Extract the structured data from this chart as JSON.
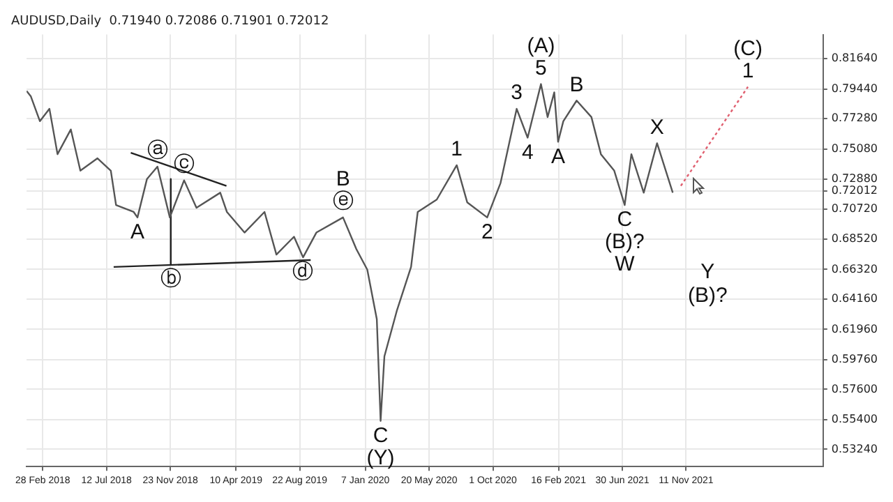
{
  "chart_data": {
    "type": "line",
    "title": "AUDUSD,Daily  0.71940 0.72086 0.71901 0.72012",
    "xlim": [
      "2018-01-25",
      "2022-08-26"
    ],
    "xticks": [
      {
        "value": "2018-02-28",
        "label": "28 Feb 2018"
      },
      {
        "value": "2018-07-12",
        "label": "12 Jul 2018"
      },
      {
        "value": "2018-11-23",
        "label": "23 Nov 2018"
      },
      {
        "value": "2019-04-10",
        "label": "10 Apr 2019"
      },
      {
        "value": "2019-08-22",
        "label": "22 Aug 2019"
      },
      {
        "value": "2020-01-07",
        "label": "7 Jan 2020"
      },
      {
        "value": "2020-05-20",
        "label": "20 May 2020"
      },
      {
        "value": "2020-10-01",
        "label": "1 Oct 2020"
      },
      {
        "value": "2021-02-16",
        "label": "16 Feb 2021"
      },
      {
        "value": "2021-06-30",
        "label": "30 Jun 2021"
      },
      {
        "value": "2021-11-11",
        "label": "11 Nov 2021"
      }
    ],
    "ylim": [
      0.5198,
      0.834
    ],
    "yticks": [
      {
        "value": 0.5324,
        "label": "0.53240"
      },
      {
        "value": 0.554,
        "label": "0.55400"
      },
      {
        "value": 0.576,
        "label": "0.57600"
      },
      {
        "value": 0.5976,
        "label": "0.59760"
      },
      {
        "value": 0.6196,
        "label": "0.61960"
      },
      {
        "value": 0.6416,
        "label": "0.64160"
      },
      {
        "value": 0.6632,
        "label": "0.66320"
      },
      {
        "value": 0.6852,
        "label": "0.68520"
      },
      {
        "value": 0.7072,
        "label": "0.70720"
      },
      {
        "value": 0.72012,
        "label": "0.72012"
      },
      {
        "value": 0.7288,
        "label": "0.72880"
      },
      {
        "value": 0.7508,
        "label": "0.75080"
      },
      {
        "value": 0.7728,
        "label": "0.77280"
      },
      {
        "value": 0.7944,
        "label": "0.79440"
      },
      {
        "value": 0.8164,
        "label": "0.81640"
      }
    ],
    "grid": true,
    "series": [
      {
        "color": "#555555",
        "x": [
          "2018-01-25",
          "2018-02-03",
          "2018-02-22",
          "2018-03-14",
          "2018-03-31",
          "2018-04-28",
          "2018-05-18",
          "2018-06-23",
          "2018-07-21",
          "2018-08-01",
          "2018-09-07",
          "2018-09-15",
          "2018-10-05",
          "2018-10-27",
          "2018-11-22",
          "2018-12-22",
          "2019-01-17",
          "2019-03-08",
          "2019-03-22",
          "2019-04-28",
          "2019-06-09",
          "2019-07-04",
          "2019-08-10",
          "2019-08-29",
          "2019-09-26",
          "2019-11-21",
          "2019-12-19",
          "2020-01-11",
          "2020-01-31",
          "2020-02-08",
          "2020-02-16",
          "2020-03-13",
          "2020-04-12",
          "2020-04-26",
          "2020-06-05",
          "2020-07-17",
          "2020-08-08",
          "2020-09-19",
          "2020-10-17",
          "2020-11-20",
          "2020-12-13",
          "2021-01-10",
          "2021-01-24",
          "2021-02-07",
          "2021-02-15",
          "2021-02-26",
          "2021-03-26",
          "2021-04-26",
          "2021-05-16",
          "2021-06-13",
          "2021-07-05",
          "2021-07-19",
          "2021-08-14",
          "2021-09-11",
          "2021-10-14"
        ],
        "values": [
          0.793,
          0.789,
          0.771,
          0.78,
          0.747,
          0.765,
          0.735,
          0.744,
          0.735,
          0.71,
          0.705,
          0.701,
          0.729,
          0.738,
          0.701,
          0.728,
          0.708,
          0.719,
          0.705,
          0.69,
          0.705,
          0.674,
          0.687,
          0.672,
          0.69,
          0.701,
          0.678,
          0.663,
          0.627,
          0.553,
          0.6,
          0.633,
          0.665,
          0.705,
          0.714,
          0.739,
          0.712,
          0.701,
          0.726,
          0.78,
          0.759,
          0.798,
          0.774,
          0.792,
          0.756,
          0.771,
          0.786,
          0.774,
          0.747,
          0.735,
          0.71,
          0.747,
          0.719,
          0.755,
          0.719
        ]
      },
      {
        "color": "#e06070",
        "line_style": "dotted",
        "x": [
          "2021-10-31",
          "2022-03-21"
        ],
        "values": [
          0.724,
          0.796
        ]
      },
      {
        "color": "#222222",
        "x": [
          "2018-07-27",
          "2019-09-14"
        ],
        "values": [
          0.665,
          0.67
        ]
      },
      {
        "color": "#222222",
        "x": [
          "2018-09-01",
          "2019-03-21"
        ],
        "values": [
          0.748,
          0.724
        ]
      },
      {
        "color": "#222222",
        "x": [
          "2018-11-24",
          "2018-11-24"
        ],
        "values": [
          0.729,
          0.667
        ]
      }
    ],
    "annotations": [
      {
        "text": "A",
        "x": "2018-09-15",
        "y": 0.701
      },
      {
        "text": "ⓐ",
        "x": "2018-10-27",
        "y": 0.738
      },
      {
        "text": "ⓒ",
        "x": "2018-12-22",
        "y": 0.728
      },
      {
        "text": "ⓑ",
        "x": "2018-11-24",
        "y": 0.667
      },
      {
        "text": "ⓓ",
        "x": "2019-08-29",
        "y": 0.672
      },
      {
        "text": "ⓔ",
        "x": "2019-11-21",
        "y": 0.701
      },
      {
        "text": "B",
        "x": "2019-11-21",
        "y": 0.701
      },
      {
        "text": "C",
        "x": "2020-02-08",
        "y": 0.553
      },
      {
        "text": "(Y)",
        "x": "2020-02-08",
        "y": 0.553
      },
      {
        "text": "1",
        "x": "2020-07-17",
        "y": 0.739
      },
      {
        "text": "2",
        "x": "2020-09-19",
        "y": 0.701
      },
      {
        "text": "3",
        "x": "2020-11-20",
        "y": 0.78
      },
      {
        "text": "4",
        "x": "2020-12-13",
        "y": 0.759
      },
      {
        "text": "5",
        "x": "2021-01-10",
        "y": 0.798
      },
      {
        "text": "(A)",
        "x": "2021-01-10",
        "y": 0.798
      },
      {
        "text": "A",
        "x": "2021-02-15",
        "y": 0.756
      },
      {
        "text": "B",
        "x": "2021-03-26",
        "y": 0.786
      },
      {
        "text": "C",
        "x": "2021-07-05",
        "y": 0.71
      },
      {
        "text": "(B)?",
        "x": "2021-07-05",
        "y": 0.71
      },
      {
        "text": "W",
        "x": "2021-07-05",
        "y": 0.71
      },
      {
        "text": "X",
        "x": "2021-09-11",
        "y": 0.755
      },
      {
        "text": "1",
        "x": "2022-03-21",
        "y": 0.796
      },
      {
        "text": "(C)",
        "x": "2022-03-21",
        "y": 0.796
      },
      "Y",
      "(B)?"
    ]
  }
}
